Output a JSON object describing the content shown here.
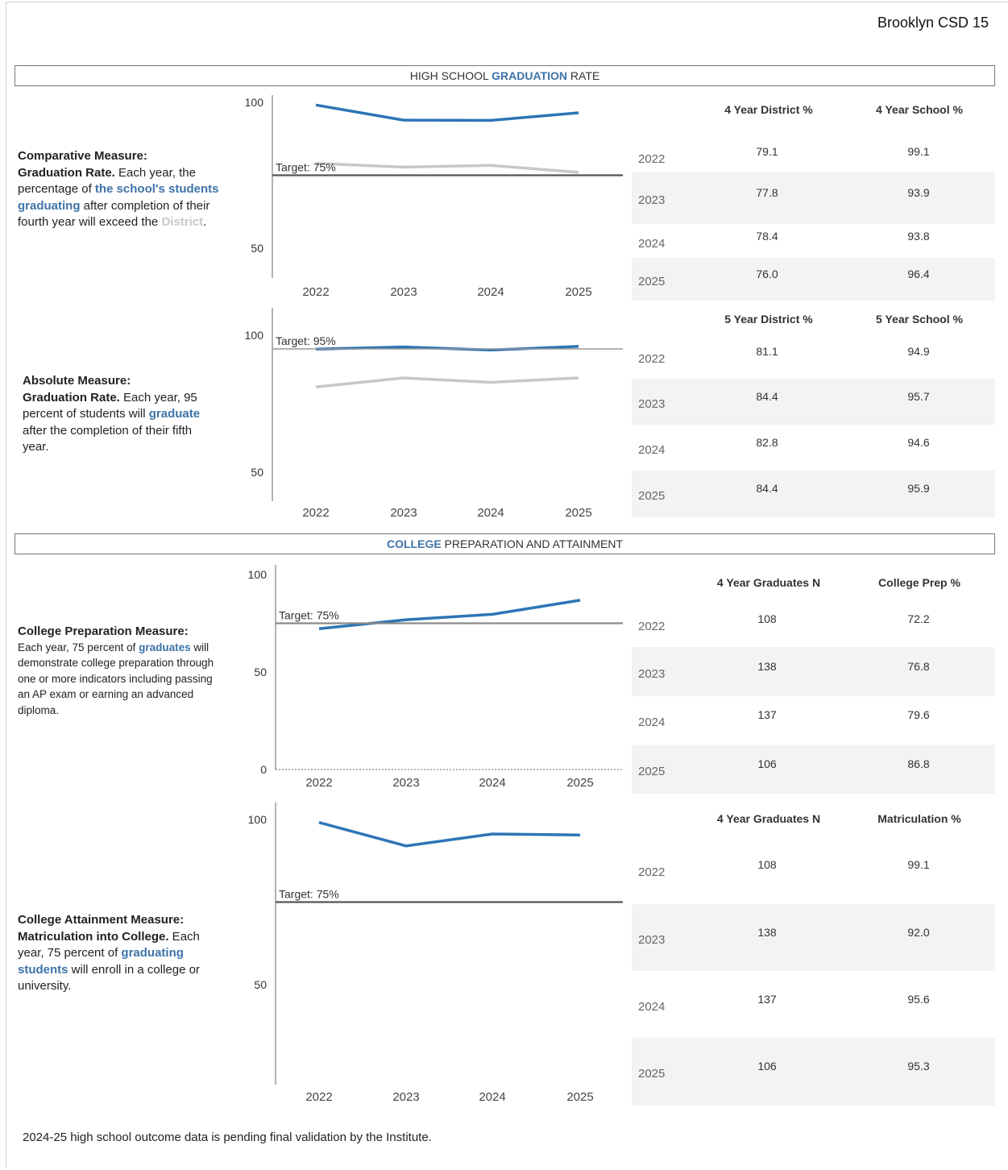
{
  "district": "Brooklyn CSD 15",
  "sections": {
    "graduation": {
      "pre": "HIGH SCHOOL ",
      "hl": "GRADUATION",
      "post": " RATE"
    },
    "college": {
      "pre": "",
      "hl": "COLLEGE",
      "post": " PREPARATION AND ATTAINMENT"
    }
  },
  "descriptions": {
    "d1": {
      "t1": "Comparative Measure:",
      "t2": "Graduation Rate.",
      "t3": " Each year, the percentage of ",
      "t4": "the school's students graduating",
      "t5": " after completion of their fourth year will exceed the ",
      "t6": "District",
      "t7": "."
    },
    "d2": {
      "t1": "Absolute Measure:",
      "t2": "Graduation Rate.",
      "t3": " Each year, 95 percent of students will ",
      "t4": "graduate",
      "t5": " after the completion of their fifth year."
    },
    "d3": {
      "t1": "College Preparation Measure:",
      "t2": "Each year, 75 percent of ",
      "t3": "graduates",
      "t4": " will demonstrate college preparation through one or more indicators including passing an AP exam or earning an advanced diploma."
    },
    "d4": {
      "t1": "College Attainment Measure:",
      "t2": "Matriculation into College.",
      "t3": " Each year, 75 percent of ",
      "t4": "graduating students",
      "t5": " will enroll in a college or university."
    }
  },
  "tables": [
    {
      "h1": "4 Year District %",
      "h2": "4 Year School %",
      "rows": [
        {
          "year": "2022",
          "v1": "79.1",
          "v2": "99.1"
        },
        {
          "year": "2023",
          "v1": "77.8",
          "v2": "93.9"
        },
        {
          "year": "2024",
          "v1": "78.4",
          "v2": "93.8"
        },
        {
          "year": "2025",
          "v1": "76.0",
          "v2": "96.4"
        }
      ]
    },
    {
      "h1": "5 Year District %",
      "h2": "5 Year School %",
      "rows": [
        {
          "year": "2022",
          "v1": "81.1",
          "v2": "94.9"
        },
        {
          "year": "2023",
          "v1": "84.4",
          "v2": "95.7"
        },
        {
          "year": "2024",
          "v1": "82.8",
          "v2": "94.6"
        },
        {
          "year": "2025",
          "v1": "84.4",
          "v2": "95.9"
        }
      ]
    },
    {
      "h1": "4 Year Graduates N",
      "h2": "College Prep %",
      "rows": [
        {
          "year": "2022",
          "v1": "108",
          "v2": "72.2"
        },
        {
          "year": "2023",
          "v1": "138",
          "v2": "76.8"
        },
        {
          "year": "2024",
          "v1": "137",
          "v2": "79.6"
        },
        {
          "year": "2025",
          "v1": "106",
          "v2": "86.8"
        }
      ]
    },
    {
      "h1": "4 Year Graduates N",
      "h2": "Matriculation %",
      "rows": [
        {
          "year": "2022",
          "v1": "108",
          "v2": "99.1"
        },
        {
          "year": "2023",
          "v1": "138",
          "v2": "92.0"
        },
        {
          "year": "2024",
          "v1": "137",
          "v2": "95.6"
        },
        {
          "year": "2025",
          "v1": "106",
          "v2": "95.3"
        }
      ]
    }
  ],
  "chart_data": [
    {
      "type": "line",
      "title": "",
      "categories": [
        "2022",
        "2023",
        "2024",
        "2025"
      ],
      "ylim": [
        50,
        100
      ],
      "yticks": [
        "100",
        "50"
      ],
      "series": [
        {
          "values": [
            99.1,
            93.9,
            93.8,
            96.4
          ],
          "color": "#2e75b6"
        },
        {
          "values": [
            79.1,
            77.8,
            78.4,
            76.0
          ],
          "color": "#c8c8c8"
        }
      ],
      "target": {
        "value": 75,
        "label": "Target: 75%"
      }
    },
    {
      "type": "line",
      "title": "",
      "categories": [
        "2022",
        "2023",
        "2024",
        "2025"
      ],
      "ylim": [
        50,
        100
      ],
      "yticks": [
        "100",
        "50"
      ],
      "series": [
        {
          "values": [
            94.9,
            95.7,
            94.6,
            95.9
          ],
          "color": "#2e75b6"
        },
        {
          "values": [
            81.1,
            84.4,
            82.8,
            84.4
          ],
          "color": "#c8c8c8"
        }
      ],
      "target": {
        "value": 95,
        "label": "Target: 95%"
      }
    },
    {
      "type": "line",
      "title": "",
      "categories": [
        "2022",
        "2023",
        "2024",
        "2025"
      ],
      "ylim": [
        0,
        100
      ],
      "yticks": [
        "100",
        "50",
        "0"
      ],
      "series": [
        {
          "values": [
            72.2,
            76.8,
            79.6,
            86.8
          ],
          "color": "#2e75b6"
        }
      ],
      "target": {
        "value": 75,
        "label": "Target: 75%"
      }
    },
    {
      "type": "line",
      "title": "",
      "categories": [
        "2022",
        "2023",
        "2024",
        "2025"
      ],
      "ylim": [
        50,
        100
      ],
      "yticks": [
        "100",
        "50"
      ],
      "series": [
        {
          "values": [
            99.1,
            92.0,
            95.6,
            95.3
          ],
          "color": "#2e75b6"
        }
      ],
      "target": {
        "value": 75,
        "label": "Target: 75%"
      }
    }
  ],
  "footnote": "2024-25 high school outcome data is pending final validation by the Institute."
}
